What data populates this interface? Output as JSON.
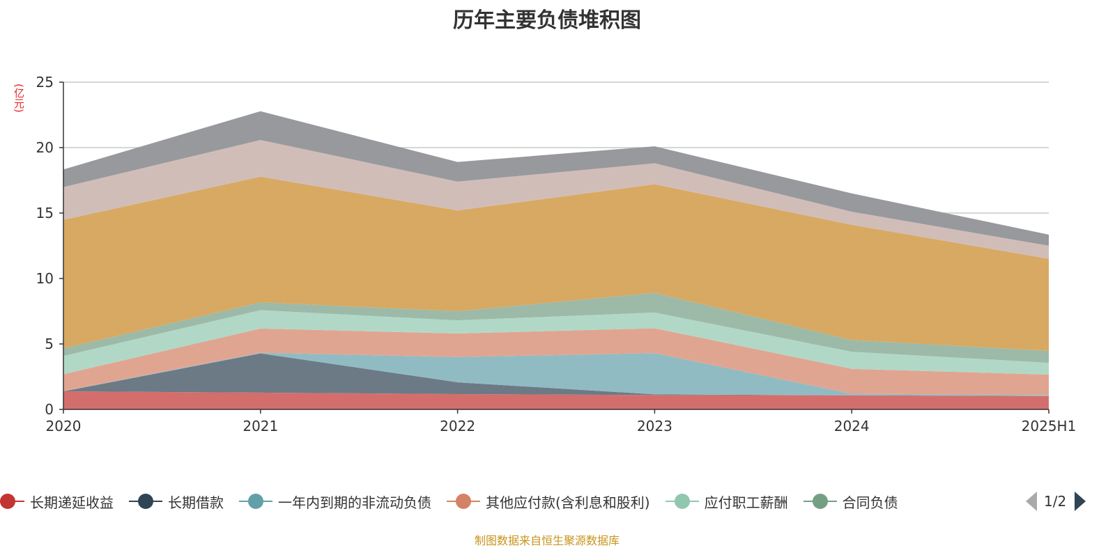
{
  "chart_data": {
    "type": "area",
    "stacked": true,
    "title": "历年主要负债堆积图",
    "ylabel": "(亿元)",
    "xlabel": "",
    "ylim": [
      0,
      25
    ],
    "yticks": [
      "0",
      "5",
      "10",
      "15",
      "20",
      "25"
    ],
    "grid": true,
    "legend_position": "bottom",
    "categories": [
      "2020",
      "2021",
      "2022",
      "2023",
      "2024",
      "2025H1"
    ],
    "series": [
      {
        "name": "长期递延收益",
        "color": "#c23531",
        "fill": "#d46e6c",
        "values": [
          1.38,
          1.28,
          1.17,
          1.1,
          1.08,
          1.02
        ]
      },
      {
        "name": "长期借款",
        "color": "#2f4554",
        "fill": "#6c7a86",
        "values": [
          0.0,
          3.0,
          0.9,
          0.05,
          0.0,
          0.0
        ]
      },
      {
        "name": "一年内到期的非流动负债",
        "color": "#61a0a8",
        "fill": "#91bbc2",
        "values": [
          0.02,
          0.05,
          1.93,
          3.15,
          0.12,
          0.08
        ]
      },
      {
        "name": "其他应付款(含利息和股利)",
        "color": "#d48265",
        "fill": "#e0a591",
        "values": [
          1.29,
          1.85,
          1.8,
          1.9,
          1.9,
          1.56
        ]
      },
      {
        "name": "应付职工薪酬",
        "color": "#91c7ae",
        "fill": "#b1d8c7",
        "values": [
          1.39,
          1.4,
          1.0,
          1.2,
          1.3,
          0.9
        ]
      },
      {
        "name": "合同负债",
        "color": "#749f83",
        "fill": "#9dbaa8",
        "values": [
          0.58,
          0.6,
          0.7,
          1.5,
          0.9,
          0.91
        ]
      },
      {
        "color": "#ca8622",
        "fill": "#d8a962",
        "values": [
          9.82,
          9.6,
          7.7,
          8.3,
          8.8,
          7.03
        ]
      },
      {
        "color": "#bda29a",
        "fill": "#d1bdb8",
        "values": [
          2.5,
          2.8,
          2.2,
          1.6,
          1.0,
          1.0
        ]
      },
      {
        "color": "#6e7074",
        "fill": "#98999d",
        "values": [
          1.35,
          2.2,
          1.5,
          1.3,
          1.4,
          0.85
        ]
      }
    ]
  },
  "legend": {
    "visible_items": [
      "长期递延收益",
      "长期借款",
      "一年内到期的非流动负债",
      "其他应付款(含利息和股利)",
      "应付职工薪酬",
      "合同负债"
    ],
    "page": "1/2"
  },
  "source": "制图数据来自恒生聚源数据库"
}
